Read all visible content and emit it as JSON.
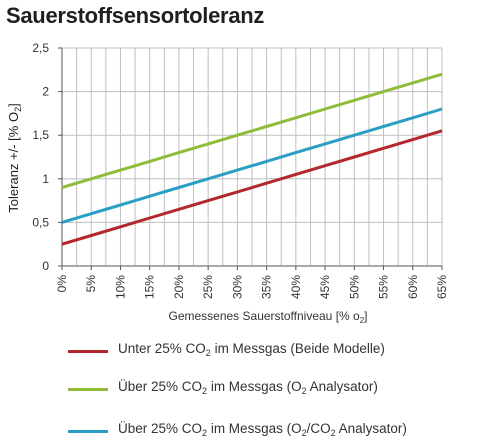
{
  "chart_data": {
    "type": "line",
    "title": "Sauerstoffsensortoleranz",
    "ylabel": "Toleranz +/- [% O2]",
    "xlabel": "Gemessenes Sauerstoffniveau [% o2]",
    "x": [
      0,
      5,
      10,
      15,
      20,
      25,
      30,
      35,
      40,
      45,
      50,
      55,
      60,
      65
    ],
    "x_tick_labels": [
      "0%",
      "5%",
      "10%",
      "15%",
      "20%",
      "25%",
      "30%",
      "35%",
      "40%",
      "45%",
      "50%",
      "55%",
      "60%",
      "65%"
    ],
    "y_tick_labels": [
      "0",
      "0,5",
      "1",
      "1,5",
      "2",
      "2,5"
    ],
    "y_ticks": [
      0,
      0.5,
      1,
      1.5,
      2,
      2.5
    ],
    "xlim": [
      0,
      65
    ],
    "ylim": [
      0,
      2.5
    ],
    "grid": true,
    "series": [
      {
        "name": "Unter 25% CO2 im Messgas (Beide Modelle)",
        "color": "#b3282d",
        "values": [
          0.25,
          0.35,
          0.45,
          0.55,
          0.65,
          0.75,
          0.85,
          0.95,
          1.05,
          1.15,
          1.25,
          1.35,
          1.45,
          1.55
        ]
      },
      {
        "name": "Über 25% CO2 im Messgas (O2 Analysator)",
        "color": "#8fbc3a",
        "values": [
          0.9,
          1.0,
          1.1,
          1.2,
          1.3,
          1.4,
          1.5,
          1.6,
          1.7,
          1.8,
          1.9,
          2.0,
          2.1,
          2.2
        ]
      },
      {
        "name": "Über 25% CO2 im Messgas (O2/CO2 Analysator)",
        "color": "#2a9fc4",
        "values": [
          0.5,
          0.6,
          0.7,
          0.8,
          0.9,
          1.0,
          1.1,
          1.2,
          1.3,
          1.4,
          1.5,
          1.6,
          1.7,
          1.8
        ]
      }
    ],
    "legend_position": "bottom"
  },
  "legend": [
    {
      "pre": "Unter 25% CO",
      "sub1": "2",
      "mid": " im Messgas (Beide Modelle)",
      "sub2": "",
      "post": ""
    },
    {
      "pre": "Über 25% CO",
      "sub1": "2",
      "mid": " im Messgas (O",
      "sub2": "2",
      "post": " Analysator)"
    },
    {
      "pre": "Über 25% CO",
      "sub1": "2",
      "mid": " im Messgas (O",
      "sub2": "2",
      "post": "/CO"
    },
    {
      "sub3": "2",
      "post2": " Analysator)"
    }
  ]
}
